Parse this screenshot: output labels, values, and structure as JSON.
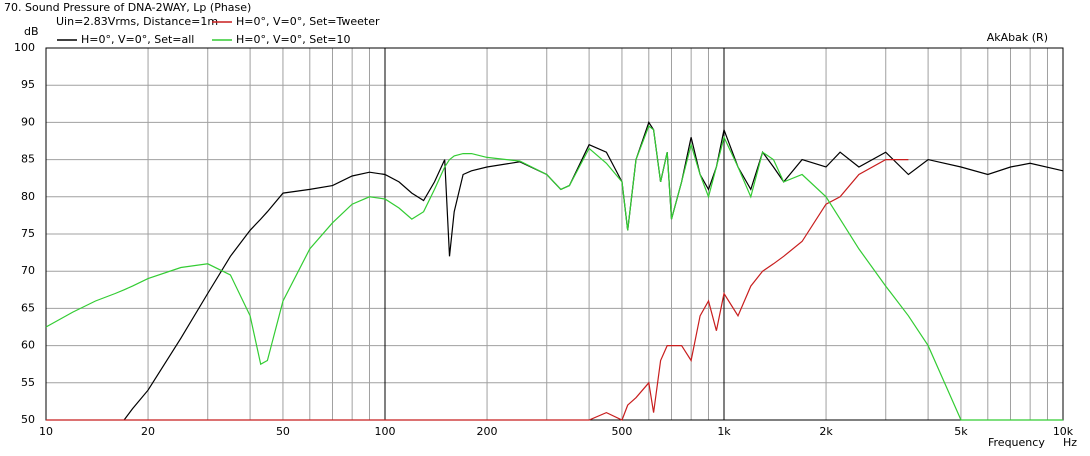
{
  "chart_data": {
    "type": "line",
    "title": "70. Sound Pressure of DNA-2WAY, Lp (Phase)",
    "subtitle": "Uin=2.83Vrms, Distance=1m",
    "annotation": "AkAbak (R)",
    "y_label": "dB",
    "x_label": "Frequency",
    "x_unit": "Hz",
    "x_scale": "log",
    "grid": true,
    "xlim": [
      10,
      10000
    ],
    "ylim": [
      50,
      100
    ],
    "xticks": [
      10,
      20,
      50,
      100,
      200,
      500,
      {
        "value": 1000,
        "label": "1k"
      },
      {
        "value": 2000,
        "label": "2k"
      },
      {
        "value": 5000,
        "label": "5k"
      },
      {
        "value": 10000,
        "label": "10k"
      }
    ],
    "xminorticks": [
      30,
      40,
      60,
      70,
      80,
      90,
      300,
      400,
      600,
      700,
      800,
      900,
      3000,
      4000,
      6000,
      7000,
      8000,
      9000
    ],
    "yticks": [
      50,
      55,
      60,
      65,
      70,
      75,
      80,
      85,
      90,
      95,
      100
    ],
    "x": [
      10,
      12,
      14,
      16,
      17,
      18,
      20,
      25,
      30,
      35,
      40,
      43,
      45,
      50,
      60,
      70,
      80,
      90,
      100,
      110,
      120,
      130,
      140,
      150,
      155,
      160,
      170,
      180,
      200,
      250,
      300,
      330,
      350,
      400,
      450,
      500,
      520,
      550,
      600,
      620,
      650,
      680,
      700,
      750,
      800,
      850,
      900,
      950,
      1000,
      1100,
      1200,
      1300,
      1400,
      1500,
      1700,
      2000,
      2200,
      2500,
      3000,
      3500,
      4000,
      5000,
      6000,
      7000,
      8000,
      10000
    ],
    "series": [
      {
        "name": "H=0°, V=0°, Set=all",
        "color": "#000000",
        "values": [
          null,
          null,
          null,
          null,
          50,
          51.5,
          54,
          61,
          67,
          72,
          75.5,
          77,
          78,
          80.5,
          81,
          81.5,
          82.8,
          83.3,
          83,
          82,
          80.5,
          79.5,
          82,
          85,
          72,
          78,
          83,
          83.5,
          84,
          84.7,
          83,
          81,
          81.5,
          87,
          86,
          82,
          75.5,
          85,
          90,
          89,
          82,
          86,
          77,
          82,
          88,
          83,
          81,
          84,
          89,
          84,
          81,
          86,
          84,
          82,
          85,
          84,
          86,
          84,
          86,
          83,
          85,
          84,
          83,
          84,
          84.5,
          83.5
        ]
      },
      {
        "name": "H=0°, V=0°, Set=Tweeter",
        "color": "#c81e1e",
        "values": [
          50,
          50,
          50,
          50,
          50,
          50,
          50,
          50,
          50,
          50,
          50,
          50,
          50,
          50,
          50,
          50,
          50,
          50,
          50,
          50,
          50,
          50,
          50,
          50,
          50,
          50,
          50,
          50,
          50,
          50,
          50,
          50,
          50,
          50,
          51,
          50,
          52,
          53,
          55,
          51,
          58,
          60,
          60,
          60,
          58,
          64,
          66,
          62,
          67,
          64,
          68,
          70,
          71,
          72,
          74,
          79,
          80,
          83,
          85,
          85,
          null,
          null,
          null,
          null,
          null,
          null
        ]
      },
      {
        "name": "H=0°, V=0°, Set=10",
        "color": "#33cc33",
        "values": [
          62.5,
          64.5,
          66,
          67,
          67.5,
          68,
          69,
          70.5,
          71,
          69.5,
          64,
          57.5,
          58,
          66,
          73,
          76.5,
          79,
          80,
          79.7,
          78.5,
          77,
          78,
          81,
          84,
          85,
          85.5,
          85.8,
          85.8,
          85.3,
          84.8,
          83,
          81,
          81.5,
          86.5,
          84.5,
          82,
          75.5,
          85,
          89.5,
          89,
          82,
          86,
          77,
          82,
          87,
          83,
          80,
          84,
          88,
          84,
          80,
          86,
          85,
          82,
          83,
          80,
          77,
          73,
          68,
          64,
          60,
          50,
          50,
          50,
          50,
          50
        ]
      }
    ]
  }
}
